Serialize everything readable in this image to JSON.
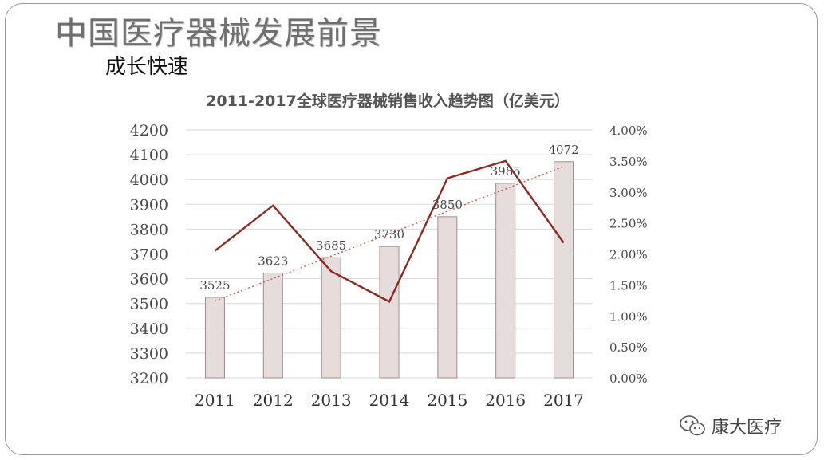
{
  "slide": {
    "title": "中国医疗器械发展前景",
    "subtitle": "成长快速"
  },
  "watermark": {
    "text": "康大医疗",
    "icon": "wechat-icon"
  },
  "chart_data": {
    "type": "bar",
    "title": "2011-2017全球医疗器械销售收入趋势图（亿美元）",
    "categories": [
      "2011",
      "2012",
      "2013",
      "2014",
      "2015",
      "2016",
      "2017"
    ],
    "values": [
      3525,
      3623,
      3685,
      3730,
      3850,
      3985,
      4072
    ],
    "data_labels": [
      "3525",
      "3623",
      "3685",
      "3730",
      "3850",
      "3985",
      "4072"
    ],
    "ylim": [
      3200,
      4200
    ],
    "yticks": [
      3200,
      3300,
      3400,
      3500,
      3600,
      3700,
      3800,
      3900,
      4000,
      4100,
      4200
    ],
    "ytick_labels": [
      "3200",
      "3300",
      "3400",
      "3500",
      "3600",
      "3700",
      "3800",
      "3900",
      "4000",
      "4100",
      "4200"
    ],
    "y2lim": [
      0,
      4
    ],
    "y2ticks": [
      0,
      0.5,
      1,
      1.5,
      2,
      2.5,
      3,
      3.5,
      4
    ],
    "y2tick_labels": [
      "0.00%",
      "0.50%",
      "1.00%",
      "1.50%",
      "2.00%",
      "2.50%",
      "3.00%",
      "3.50%",
      "4.00%"
    ],
    "line_series": {
      "axis": "secondary",
      "unit": "%",
      "values": [
        2.05,
        2.78,
        1.72,
        1.23,
        3.22,
        3.5,
        2.18
      ]
    },
    "trendline": {
      "style": "dotted",
      "on": "bars",
      "type": "linear"
    },
    "grid": "horizontal",
    "colors": {
      "bar_fill": "#e6dcdc",
      "bar_stroke": "#9a8f8f",
      "line": "#8b2a22",
      "trend": "#c05a50",
      "grid": "#d8d8d8"
    }
  }
}
